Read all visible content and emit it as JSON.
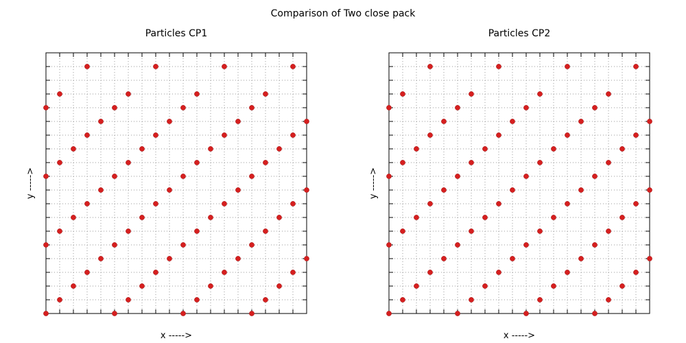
{
  "figure": {
    "title": "Comparison of Two close pack"
  },
  "chart_data": [
    {
      "type": "scatter",
      "title": "Particles CP1",
      "xlabel": "x ----->",
      "ylabel": "y ----->",
      "xlim": [
        0,
        19
      ],
      "ylim": [
        0,
        19
      ],
      "grid": true,
      "tick_labels": false,
      "point_color": "#d61f1f",
      "series": [
        {
          "x": [
            0,
            5,
            10,
            15,
            1,
            6,
            11,
            16,
            2,
            7,
            12,
            17,
            3,
            8,
            13,
            18,
            4,
            9,
            14,
            19,
            0,
            5,
            10,
            15,
            1,
            6,
            11,
            16,
            2,
            7,
            12,
            17,
            3,
            8,
            13,
            18,
            4,
            9,
            14,
            19,
            0,
            5,
            10,
            15,
            1,
            6,
            11,
            16,
            2,
            7,
            12,
            17,
            3,
            8,
            13,
            18,
            4,
            9,
            14,
            19,
            0,
            5,
            10,
            15,
            1,
            6,
            11,
            16,
            3,
            8,
            13,
            18
          ],
          "y": [
            0,
            0,
            0,
            0,
            1,
            1,
            1,
            1,
            2,
            2,
            2,
            2,
            3,
            3,
            3,
            3,
            4,
            4,
            4,
            4,
            5,
            5,
            5,
            5,
            6,
            6,
            6,
            6,
            7,
            7,
            7,
            7,
            8,
            8,
            8,
            8,
            9,
            9,
            9,
            9,
            10,
            10,
            10,
            10,
            11,
            11,
            11,
            11,
            12,
            12,
            12,
            12,
            13,
            13,
            13,
            13,
            14,
            14,
            14,
            14,
            15,
            15,
            15,
            15,
            16,
            16,
            16,
            16,
            18,
            18,
            18,
            18
          ]
        }
      ]
    },
    {
      "type": "scatter",
      "title": "Particles CP2",
      "xlabel": "x ----->",
      "ylabel": "y ----->",
      "xlim": [
        0,
        19
      ],
      "ylim": [
        0,
        19
      ],
      "grid": true,
      "tick_labels": false,
      "point_color": "#d61f1f",
      "series": [
        {
          "x": [
            0,
            5,
            10,
            15,
            1,
            6,
            11,
            16,
            2,
            7,
            12,
            17,
            3,
            8,
            13,
            18,
            4,
            9,
            14,
            19,
            0,
            5,
            10,
            15,
            1,
            6,
            11,
            16,
            2,
            7,
            12,
            17,
            3,
            8,
            13,
            18,
            4,
            9,
            14,
            19,
            0,
            5,
            10,
            15,
            1,
            6,
            11,
            16,
            2,
            7,
            12,
            17,
            3,
            8,
            13,
            18,
            4,
            9,
            14,
            19,
            0,
            5,
            10,
            15,
            1,
            6,
            11,
            16,
            3,
            8,
            13,
            18
          ],
          "y": [
            0,
            0,
            0,
            0,
            1,
            1,
            1,
            1,
            2,
            2,
            2,
            2,
            3,
            3,
            3,
            3,
            4,
            4,
            4,
            4,
            5,
            5,
            5,
            5,
            6,
            6,
            6,
            6,
            7,
            7,
            7,
            7,
            8,
            8,
            8,
            8,
            9,
            9,
            9,
            9,
            10,
            10,
            10,
            10,
            11,
            11,
            11,
            11,
            12,
            12,
            12,
            12,
            13,
            13,
            13,
            13,
            14,
            14,
            14,
            14,
            15,
            15,
            15,
            15,
            16,
            16,
            16,
            16,
            18,
            18,
            18,
            18
          ]
        }
      ]
    }
  ]
}
